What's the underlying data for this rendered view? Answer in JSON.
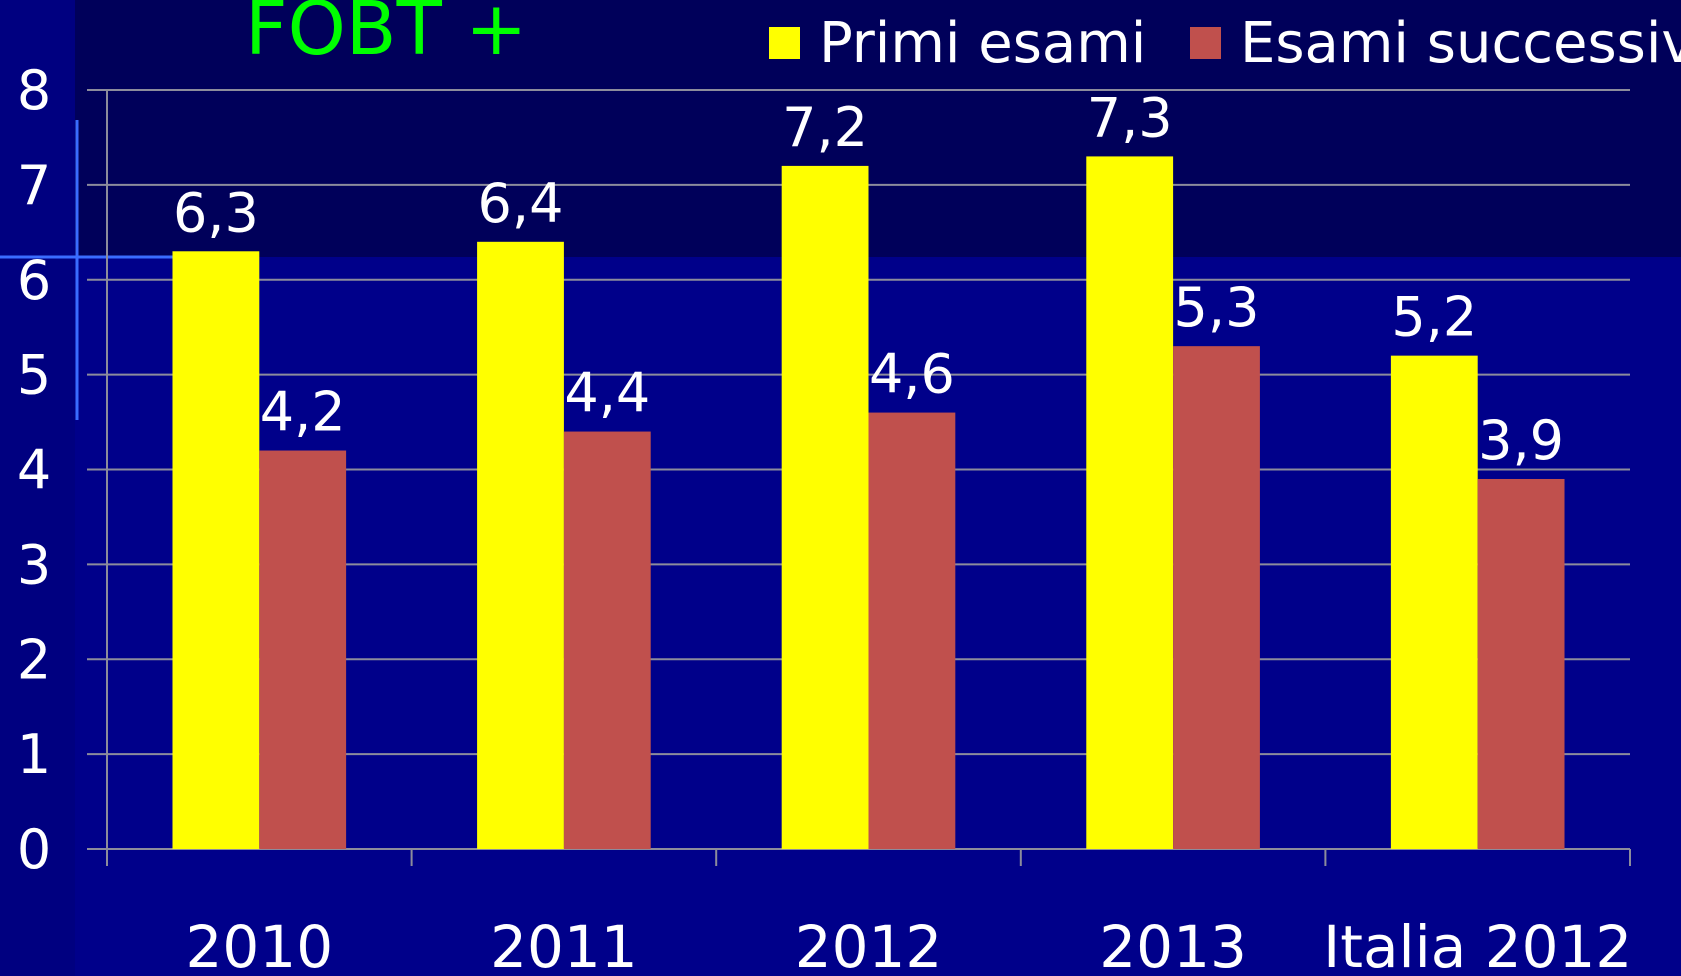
{
  "chart_data": {
    "type": "bar",
    "title": "FOBT +",
    "categories": [
      "2010",
      "2011",
      "2012",
      "2013",
      "Italia 2012"
    ],
    "series": [
      {
        "name": "Primi esami",
        "color": "#ffff00",
        "values": [
          6.3,
          6.4,
          7.2,
          7.3,
          5.2
        ],
        "value_labels": [
          "6,3",
          "6,4",
          "7,2",
          "7,3",
          "5,2"
        ]
      },
      {
        "name": "Esami successivi",
        "color": "#c0504d",
        "values": [
          4.2,
          4.4,
          4.6,
          5.3,
          3.9
        ],
        "value_labels": [
          "4,2",
          "4,4",
          "4,6",
          "5,3",
          "3,9"
        ]
      }
    ],
    "ylim": [
      0,
      8
    ],
    "yticks": [
      0,
      1,
      2,
      3,
      4,
      5,
      6,
      7,
      8
    ],
    "grid": true,
    "legend": "top-right"
  }
}
